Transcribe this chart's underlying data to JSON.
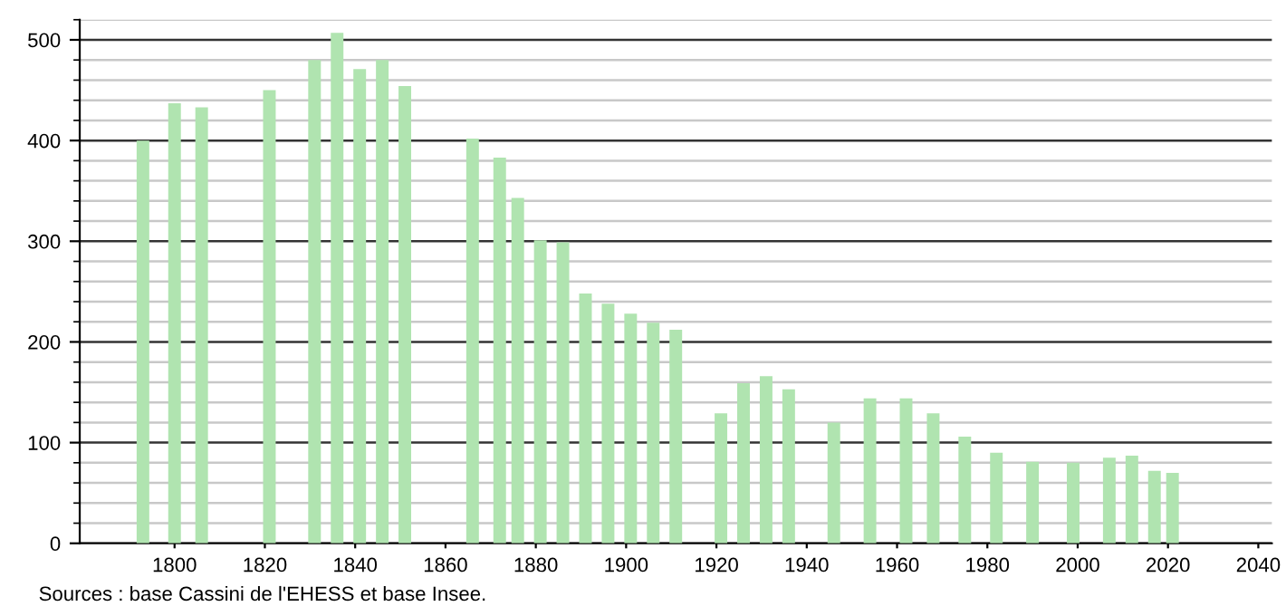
{
  "chart_data": {
    "type": "bar",
    "x": [
      1793,
      1800,
      1806,
      1821,
      1831,
      1836,
      1841,
      1846,
      1851,
      1866,
      1872,
      1876,
      1881,
      1886,
      1891,
      1896,
      1901,
      1906,
      1911,
      1921,
      1926,
      1931,
      1936,
      1946,
      1954,
      1962,
      1968,
      1975,
      1982,
      1990,
      1999,
      2007,
      2012,
      2017,
      2021
    ],
    "values": [
      400,
      437,
      433,
      450,
      480,
      507,
      471,
      480,
      454,
      402,
      383,
      343,
      301,
      299,
      248,
      238,
      228,
      219,
      212,
      129,
      159,
      166,
      153,
      120,
      144,
      144,
      129,
      106,
      90,
      81,
      80,
      85,
      87,
      72,
      70
    ],
    "color": "#b0e4b0",
    "xlim": [
      1779,
      2043
    ],
    "xticks": [
      1800,
      1820,
      1840,
      1860,
      1880,
      1900,
      1920,
      1940,
      1960,
      1980,
      2000,
      2020,
      2040
    ],
    "ylim": [
      0,
      520
    ],
    "yticks": [
      0,
      100,
      200,
      300,
      400,
      500
    ],
    "grid": "y",
    "annotations": [
      "Sources : base Cassini de l'EHESS et base Insee."
    ]
  }
}
